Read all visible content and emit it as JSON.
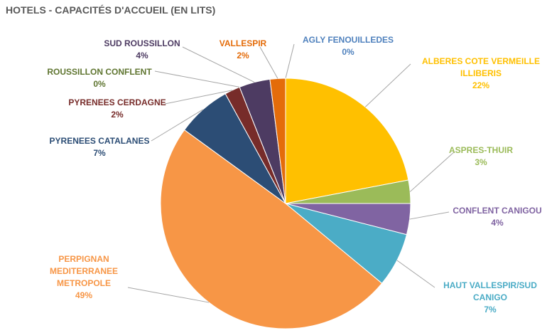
{
  "chart_data": {
    "type": "pie",
    "title": "HOTELS - CAPACITÉS D'ACCUEIL (EN LITS)",
    "categories": [
      "AGLY FENOUILLEDES",
      "ALBERES COTE VERMEILLE ILLIBERIS",
      "ASPRES-THUIR",
      "CONFLENT CANIGOU",
      "HAUT VALLESPIR/SUD CANIGO",
      "PERPIGNAN MEDITERRANEE METROPOLE",
      "PYRENEES CATALANES",
      "PYRENEES CERDAGNE",
      "ROUSSILLON CONFLENT",
      "SUD ROUSSILLON",
      "VALLESPIR"
    ],
    "values": [
      0,
      22,
      3,
      4,
      7,
      49,
      7,
      2,
      0,
      4,
      2
    ],
    "value_labels": [
      "0%",
      "22%",
      "3%",
      "4%",
      "7%",
      "49%",
      "7%",
      "2%",
      "0%",
      "4%",
      "2%"
    ],
    "colors": [
      "#4f81bd",
      "#ffc000",
      "#9bbb59",
      "#8064a2",
      "#4bacc6",
      "#f79646",
      "#2c4d75",
      "#772c2a",
      "#5f7530",
      "#4d3b62",
      "#e46c0a"
    ]
  }
}
